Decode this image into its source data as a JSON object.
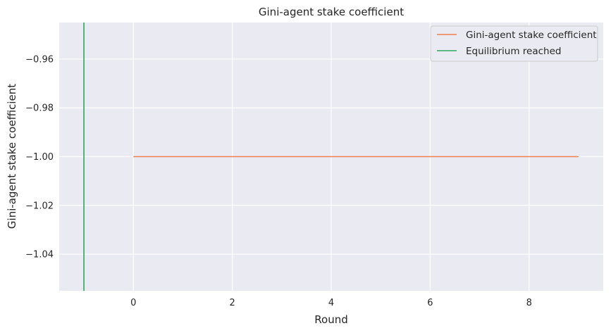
{
  "chart_data": {
    "type": "line",
    "title": "Gini-agent stake coefficient",
    "xlabel": "Round",
    "ylabel": "Gini-agent stake coefficient",
    "xlim": [
      -1.5,
      9.5
    ],
    "ylim": [
      -1.055,
      -0.945
    ],
    "xticks": [
      0,
      2,
      4,
      6,
      8
    ],
    "xtick_labels": [
      "0",
      "2",
      "4",
      "6",
      "8"
    ],
    "yticks": [
      -0.96,
      -0.98,
      -1.0,
      -1.02,
      -1.04
    ],
    "ytick_labels": [
      "−0.96",
      "−0.98",
      "−1.00",
      "−1.02",
      "−1.04"
    ],
    "grid": true,
    "legend_position": "top-right",
    "series": [
      {
        "name": "Gini-agent stake coefficient",
        "color": "#f07f4f",
        "x": [
          0,
          1,
          2,
          3,
          4,
          5,
          6,
          7,
          8,
          9
        ],
        "values": [
          -1.0,
          -1.0,
          -1.0,
          -1.0,
          -1.0,
          -1.0,
          -1.0,
          -1.0,
          -1.0,
          -1.0
        ]
      }
    ],
    "vlines": [
      {
        "name": "Equilibrium reached",
        "x": -1,
        "color": "#2ca65a"
      }
    ],
    "background_color": "#eaeaf2",
    "grid_color": "#ffffff"
  }
}
